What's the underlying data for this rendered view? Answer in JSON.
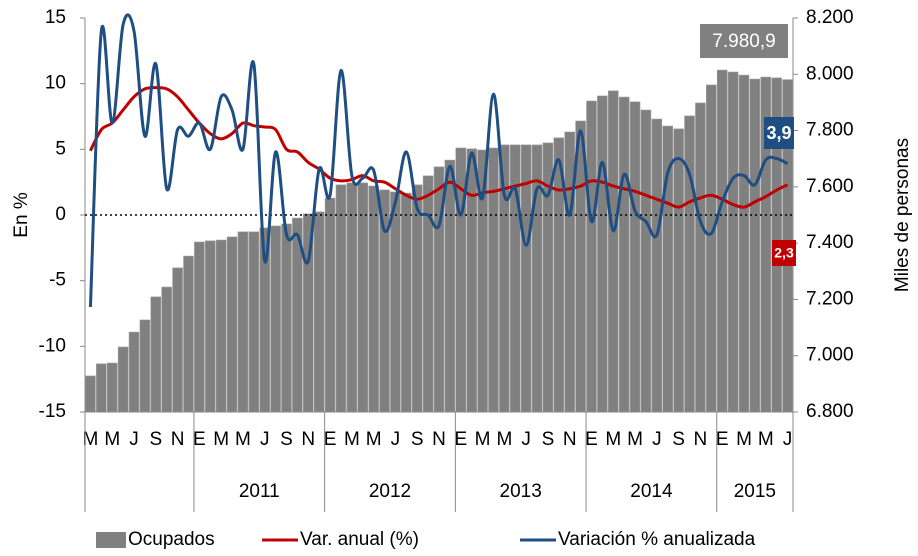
{
  "chart_data": {
    "type": "combo",
    "y_axis_label": "En %",
    "y2_axis_label": "Miles de personas",
    "categories": [
      "M",
      null,
      "M",
      null,
      "J",
      null,
      "S",
      null,
      "N",
      null,
      "E",
      null,
      "M",
      null,
      "M",
      null,
      "J",
      null,
      "S",
      null,
      "N",
      null,
      "E",
      null,
      "M",
      null,
      "M",
      null,
      "J",
      null,
      "S",
      null,
      "N",
      null,
      "E",
      null,
      "M",
      null,
      "M",
      null,
      "J",
      null,
      "S",
      null,
      "N",
      null,
      "E",
      null,
      "M",
      null,
      "M",
      null,
      "J",
      null,
      "S",
      null,
      "N",
      null,
      "E",
      null,
      "M",
      null,
      "M",
      null,
      "J"
    ],
    "groups": [
      {
        "label": null,
        "count": 10
      },
      {
        "label": "2011",
        "count": 12
      },
      {
        "label": "2012",
        "count": 12
      },
      {
        "label": "2013",
        "count": 12
      },
      {
        "label": "2014",
        "count": 12
      },
      {
        "label": "2015",
        "count": 7
      }
    ],
    "series": [
      {
        "name": "Ocupados",
        "type": "bar",
        "axis": "y2",
        "color": "#808080",
        "values": [
          6928,
          6971,
          6974,
          7031,
          7084,
          7127,
          7209,
          7244,
          7312,
          7354,
          7404,
          7408,
          7411,
          7422,
          7440,
          7440,
          7454,
          7461,
          7468,
          7489,
          7504,
          7511,
          7560,
          7607,
          7614,
          7614,
          7603,
          7589,
          7582,
          7578,
          7607,
          7639,
          7671,
          7695,
          7738,
          7735,
          7731,
          7738,
          7749,
          7749,
          7749,
          7749,
          7756,
          7774,
          7795,
          7834,
          7905,
          7923,
          7941,
          7919,
          7902,
          7873,
          7841,
          7816,
          7806,
          7852,
          7898,
          7962,
          8015,
          8008,
          7997,
          7983,
          7990,
          7987,
          7980.9
        ],
        "value_labels": [
          null,
          null,
          null,
          null,
          null,
          null,
          null,
          null,
          null,
          null,
          null,
          null,
          null,
          null,
          null,
          null,
          null,
          null,
          null,
          null,
          null,
          null,
          null,
          null,
          null,
          null,
          null,
          null,
          null,
          null,
          null,
          null,
          null,
          null,
          null,
          null,
          null,
          null,
          null,
          null,
          null,
          null,
          null,
          null,
          null,
          null,
          null,
          null,
          null,
          null,
          null,
          null,
          null,
          null,
          null,
          null,
          null,
          null,
          null,
          null,
          null,
          null,
          null,
          null,
          "7.980,9"
        ]
      },
      {
        "name": "Var. anual (%)",
        "type": "line",
        "axis": "y",
        "color": "#c00000",
        "values": [
          4.9,
          6.5,
          7,
          8,
          9,
          9.6,
          9.7,
          9.6,
          9,
          8,
          7,
          6.2,
          5.8,
          6.2,
          7,
          6.8,
          6.7,
          6.5,
          5,
          4.8,
          4,
          3.5,
          2.8,
          2.6,
          2.7,
          3.0,
          2.6,
          2.5,
          2.0,
          1.5,
          1.2,
          1.5,
          2.0,
          2.5,
          2.0,
          1.5,
          1.7,
          1.8,
          2.0,
          2.2,
          2.4,
          2.6,
          2.2,
          1.9,
          2.0,
          2.2,
          2.6,
          2.5,
          2.2,
          2.0,
          1.8,
          1.5,
          1.2,
          0.9,
          0.6,
          1.0,
          1.3,
          1.5,
          1.2,
          0.8,
          0.6,
          1.0,
          1.4,
          1.9,
          2.3
        ],
        "value_labels": [
          null,
          null,
          null,
          null,
          null,
          null,
          null,
          null,
          null,
          null,
          null,
          null,
          null,
          null,
          null,
          null,
          null,
          null,
          null,
          null,
          null,
          null,
          null,
          null,
          null,
          null,
          null,
          null,
          null,
          null,
          null,
          null,
          null,
          null,
          null,
          null,
          null,
          null,
          null,
          null,
          null,
          null,
          null,
          null,
          null,
          null,
          null,
          null,
          null,
          null,
          null,
          null,
          null,
          null,
          null,
          null,
          null,
          null,
          null,
          null,
          null,
          null,
          null,
          null,
          "2,3"
        ]
      },
      {
        "name": "Variación % anualizada",
        "type": "line",
        "axis": "y",
        "color": "#1f4e82",
        "values": [
          -7,
          14,
          7,
          14.5,
          14,
          6,
          11.5,
          2,
          6.5,
          6,
          7,
          5,
          9,
          8,
          5,
          11.5,
          -3.5,
          4.8,
          -1.5,
          -1.5,
          -3.5,
          3.5,
          1.5,
          11,
          3,
          2.8,
          3.4,
          -1.2,
          1,
          4.8,
          0.5,
          0,
          -0.8,
          3.7,
          0,
          4.7,
          1.3,
          9.2,
          1.5,
          2,
          -2.3,
          2,
          1.5,
          4.2,
          0,
          6.4,
          -0.5,
          4,
          -1.2,
          3.1,
          0.3,
          -0.5,
          -1.5,
          3.2,
          4.3,
          3.1,
          -0.5,
          -1.4,
          1,
          2.8,
          3,
          2.3,
          4.2,
          4.3,
          3.9
        ],
        "value_labels": [
          null,
          null,
          null,
          null,
          null,
          null,
          null,
          null,
          null,
          null,
          null,
          null,
          null,
          null,
          null,
          null,
          null,
          null,
          null,
          null,
          null,
          null,
          null,
          null,
          null,
          null,
          null,
          null,
          null,
          null,
          null,
          null,
          null,
          null,
          null,
          null,
          null,
          null,
          null,
          null,
          null,
          null,
          null,
          null,
          null,
          null,
          null,
          null,
          null,
          null,
          null,
          null,
          null,
          null,
          null,
          null,
          null,
          null,
          null,
          null,
          null,
          null,
          null,
          null,
          "3,9"
        ]
      }
    ],
    "ylim": [
      -15,
      15
    ],
    "yticks": [
      -15,
      -10,
      -5,
      0,
      5,
      10,
      15
    ],
    "y2lim": [
      6800,
      8200
    ],
    "y2ticks": [
      {
        "value": 6800,
        "label": "6.800"
      },
      {
        "value": 7000,
        "label": "7.000"
      },
      {
        "value": 7200,
        "label": "7.200"
      },
      {
        "value": 7400,
        "label": "7.400"
      },
      {
        "value": 7600,
        "label": "7.600"
      },
      {
        "value": 7800,
        "label": "7.800"
      },
      {
        "value": 8000,
        "label": "8.000"
      },
      {
        "value": 8200,
        "label": "8.200"
      }
    ],
    "zero_line": true,
    "legend": "bottom"
  }
}
